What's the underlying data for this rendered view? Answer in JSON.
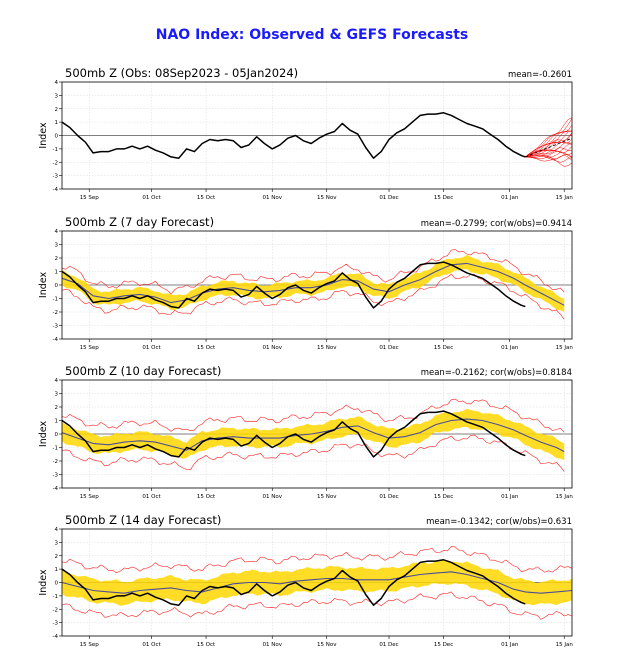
{
  "figure_title": "NAO Index: Observed & GEFS Forecasts",
  "colors": {
    "title": "#1a1aff",
    "observed": "#000000",
    "ensemble_mean": "#4d4d99",
    "spread_band": "#ffd700",
    "spread_lines": "#ff2020",
    "forecast_members": "#ff0000"
  },
  "chart_data": [
    {
      "type": "line",
      "title": "500mb Z (Obs: 08Sep2023 - 05Jan2024)",
      "stat_text": "mean=-0.2601",
      "ylabel": "Index",
      "ylim": [
        -4,
        4
      ],
      "yticks": [
        -4,
        -3,
        -2,
        -1,
        0,
        1,
        2,
        3,
        4
      ],
      "xlim_days": [
        0,
        131
      ],
      "xtick_days": [
        7,
        23,
        37,
        54,
        68,
        84,
        98,
        115,
        129
      ],
      "xtick_labels": [
        "15 Sep",
        "01 Oct",
        "15 Oct",
        "01 Nov",
        "15 Nov",
        "01 Dec",
        "15 Dec",
        "01 Jan",
        "15 Jan"
      ],
      "grid": true,
      "series": [
        {
          "role": "observed",
          "x": [
            0,
            2,
            4,
            6,
            8,
            10,
            12,
            14,
            16,
            18,
            20,
            22,
            24,
            26,
            28,
            30,
            32,
            34,
            36,
            38,
            40,
            42,
            44,
            46,
            48,
            50,
            52,
            54,
            56,
            58,
            60,
            62,
            64,
            66,
            68,
            70,
            72,
            74,
            76,
            78,
            80,
            82,
            84,
            86,
            88,
            90,
            92,
            94,
            96,
            98,
            100,
            102,
            104,
            106,
            108,
            110,
            112,
            114,
            116,
            118,
            119
          ],
          "y": [
            1.0,
            0.6,
            0.0,
            -0.5,
            -1.3,
            -1.2,
            -1.2,
            -1.0,
            -1.0,
            -0.8,
            -1.0,
            -0.8,
            -1.1,
            -1.3,
            -1.6,
            -1.7,
            -1.0,
            -1.2,
            -0.6,
            -0.3,
            -0.4,
            -0.3,
            -0.4,
            -0.9,
            -0.7,
            -0.1,
            -0.6,
            -1.0,
            -0.7,
            -0.2,
            0.0,
            -0.4,
            -0.6,
            -0.2,
            0.1,
            0.3,
            0.9,
            0.4,
            0.1,
            -0.9,
            -1.7,
            -1.2,
            -0.3,
            0.2,
            0.5,
            1.0,
            1.5,
            1.6,
            1.6,
            1.7,
            1.5,
            1.2,
            0.9,
            0.7,
            0.5,
            0.1,
            -0.3,
            -0.8,
            -1.2,
            -1.5,
            -1.6
          ]
        }
      ],
      "forecast": {
        "start_day": 119,
        "start_value": -1.6,
        "end_day": 131,
        "member_end_values": [
          -2.2,
          -1.9,
          -1.6,
          -1.4,
          -1.2,
          -1.0,
          -0.8,
          -0.6,
          -0.4,
          -0.2,
          0.0,
          0.2,
          0.4,
          0.6,
          0.8,
          1.0,
          1.2,
          -1.7,
          -0.9,
          0.1
        ],
        "mean_end_value": -0.2
      }
    },
    {
      "type": "line",
      "title": "500mb Z (7 day Forecast)",
      "stat_text": "mean=-0.2799; cor(w/obs)=0.9414",
      "ylabel": "Index",
      "ylim": [
        -4,
        4
      ],
      "yticks": [
        -4,
        -3,
        -2,
        -1,
        0,
        1,
        2,
        3,
        4
      ],
      "xlim_days": [
        0,
        131
      ],
      "xtick_days": [
        7,
        23,
        37,
        54,
        68,
        84,
        98,
        115,
        129
      ],
      "xtick_labels": [
        "15 Sep",
        "01 Oct",
        "15 Oct",
        "01 Nov",
        "15 Nov",
        "01 Dec",
        "15 Dec",
        "01 Jan",
        "15 Jan"
      ],
      "grid": true,
      "band_half_width": 0.5,
      "outer_half_width": 0.9,
      "series": [
        {
          "role": "observed",
          "x": [
            0,
            2,
            4,
            6,
            8,
            10,
            12,
            14,
            16,
            18,
            20,
            22,
            24,
            26,
            28,
            30,
            32,
            34,
            36,
            38,
            40,
            42,
            44,
            46,
            48,
            50,
            52,
            54,
            56,
            58,
            60,
            62,
            64,
            66,
            68,
            70,
            72,
            74,
            76,
            78,
            80,
            82,
            84,
            86,
            88,
            90,
            92,
            94,
            96,
            98,
            100,
            102,
            104,
            106,
            108,
            110,
            112,
            114,
            116,
            118,
            119
          ],
          "y": [
            1.0,
            0.6,
            0.0,
            -0.5,
            -1.3,
            -1.2,
            -1.2,
            -1.0,
            -1.0,
            -0.8,
            -1.0,
            -0.8,
            -1.1,
            -1.3,
            -1.6,
            -1.7,
            -1.0,
            -1.2,
            -0.6,
            -0.3,
            -0.4,
            -0.3,
            -0.4,
            -0.9,
            -0.7,
            -0.1,
            -0.6,
            -1.0,
            -0.7,
            -0.2,
            0.0,
            -0.4,
            -0.6,
            -0.2,
            0.1,
            0.3,
            0.9,
            0.4,
            0.1,
            -0.9,
            -1.7,
            -1.2,
            -0.3,
            0.2,
            0.5,
            1.0,
            1.5,
            1.6,
            1.6,
            1.7,
            1.5,
            1.2,
            0.9,
            0.7,
            0.5,
            0.1,
            -0.3,
            -0.8,
            -1.2,
            -1.5,
            -1.6
          ]
        },
        {
          "role": "ensemble_mean",
          "x": [
            0,
            4,
            8,
            12,
            16,
            20,
            24,
            28,
            32,
            36,
            40,
            44,
            48,
            52,
            56,
            60,
            64,
            68,
            72,
            76,
            80,
            84,
            88,
            92,
            96,
            100,
            104,
            108,
            112,
            116,
            119,
            123,
            127,
            129
          ],
          "y": [
            0.5,
            0.1,
            -0.8,
            -1.0,
            -0.8,
            -0.7,
            -0.9,
            -1.3,
            -1.1,
            -0.6,
            -0.3,
            -0.2,
            -0.4,
            -0.5,
            -0.4,
            -0.2,
            -0.2,
            0.0,
            0.4,
            0.3,
            -0.3,
            -0.5,
            0.0,
            0.4,
            1.0,
            1.5,
            1.6,
            1.3,
            1.0,
            0.5,
            0.0,
            -0.6,
            -1.2,
            -1.5
          ]
        }
      ]
    },
    {
      "type": "line",
      "title": "500mb Z (10 day Forecast)",
      "stat_text": "mean=-0.2162; cor(w/obs)=0.8184",
      "ylabel": "Index",
      "ylim": [
        -4,
        4
      ],
      "yticks": [
        -4,
        -3,
        -2,
        -1,
        0,
        1,
        2,
        3,
        4
      ],
      "xlim_days": [
        0,
        131
      ],
      "xtick_days": [
        7,
        23,
        37,
        54,
        68,
        84,
        98,
        115,
        129
      ],
      "xtick_labels": [
        "15 Sep",
        "01 Oct",
        "15 Oct",
        "01 Nov",
        "15 Nov",
        "01 Dec",
        "15 Dec",
        "01 Jan",
        "15 Jan"
      ],
      "grid": true,
      "band_half_width": 0.65,
      "outer_half_width": 1.35,
      "series": [
        {
          "role": "observed",
          "x": [
            0,
            2,
            4,
            6,
            8,
            10,
            12,
            14,
            16,
            18,
            20,
            22,
            24,
            26,
            28,
            30,
            32,
            34,
            36,
            38,
            40,
            42,
            44,
            46,
            48,
            50,
            52,
            54,
            56,
            58,
            60,
            62,
            64,
            66,
            68,
            70,
            72,
            74,
            76,
            78,
            80,
            82,
            84,
            86,
            88,
            90,
            92,
            94,
            96,
            98,
            100,
            102,
            104,
            106,
            108,
            110,
            112,
            114,
            116,
            118,
            119
          ],
          "y": [
            1.0,
            0.6,
            0.0,
            -0.5,
            -1.3,
            -1.2,
            -1.2,
            -1.0,
            -1.0,
            -0.8,
            -1.0,
            -0.8,
            -1.1,
            -1.3,
            -1.6,
            -1.7,
            -1.0,
            -1.2,
            -0.6,
            -0.3,
            -0.4,
            -0.3,
            -0.4,
            -0.9,
            -0.7,
            -0.1,
            -0.6,
            -1.0,
            -0.7,
            -0.2,
            0.0,
            -0.4,
            -0.6,
            -0.2,
            0.1,
            0.3,
            0.9,
            0.4,
            0.1,
            -0.9,
            -1.7,
            -1.2,
            -0.3,
            0.2,
            0.5,
            1.0,
            1.5,
            1.6,
            1.6,
            1.7,
            1.5,
            1.2,
            0.9,
            0.7,
            0.5,
            0.1,
            -0.3,
            -0.8,
            -1.2,
            -1.5,
            -1.6
          ]
        },
        {
          "role": "ensemble_mean",
          "x": [
            0,
            4,
            8,
            12,
            16,
            20,
            24,
            28,
            32,
            36,
            40,
            44,
            48,
            52,
            56,
            60,
            64,
            68,
            72,
            76,
            80,
            84,
            88,
            92,
            96,
            100,
            104,
            108,
            112,
            116,
            119,
            123,
            127,
            129
          ],
          "y": [
            0.1,
            -0.3,
            -0.7,
            -0.8,
            -0.6,
            -0.5,
            -0.6,
            -0.9,
            -1.2,
            -0.5,
            -0.3,
            -0.2,
            -0.3,
            -0.3,
            -0.3,
            -0.1,
            0.0,
            0.2,
            0.5,
            0.6,
            0.1,
            -0.3,
            -0.2,
            0.1,
            0.7,
            1.0,
            1.1,
            1.0,
            0.7,
            0.3,
            -0.1,
            -0.6,
            -1.0,
            -1.3
          ]
        }
      ]
    },
    {
      "type": "line",
      "title": "500mb Z (14 day Forecast)",
      "stat_text": "mean=-0.1342; cor(w/obs)=0.631",
      "ylabel": "Index",
      "ylim": [
        -4,
        4
      ],
      "yticks": [
        -4,
        -3,
        -2,
        -1,
        0,
        1,
        2,
        3,
        4
      ],
      "xlim_days": [
        0,
        131
      ],
      "xtick_days": [
        7,
        23,
        37,
        54,
        68,
        84,
        98,
        115,
        129
      ],
      "xtick_labels": [
        "15 Sep",
        "01 Oct",
        "15 Oct",
        "01 Nov",
        "15 Nov",
        "01 Dec",
        "15 Dec",
        "01 Jan",
        "15 Jan"
      ],
      "grid": true,
      "band_half_width": 0.85,
      "outer_half_width": 1.7,
      "series": [
        {
          "role": "observed",
          "x": [
            0,
            2,
            4,
            6,
            8,
            10,
            12,
            14,
            16,
            18,
            20,
            22,
            24,
            26,
            28,
            30,
            32,
            34,
            36,
            38,
            40,
            42,
            44,
            46,
            48,
            50,
            52,
            54,
            56,
            58,
            60,
            62,
            64,
            66,
            68,
            70,
            72,
            74,
            76,
            78,
            80,
            82,
            84,
            86,
            88,
            90,
            92,
            94,
            96,
            98,
            100,
            102,
            104,
            106,
            108,
            110,
            112,
            114,
            116,
            118,
            119
          ],
          "y": [
            1.0,
            0.6,
            0.0,
            -0.5,
            -1.3,
            -1.2,
            -1.2,
            -1.0,
            -1.0,
            -0.8,
            -1.0,
            -0.8,
            -1.1,
            -1.3,
            -1.6,
            -1.7,
            -1.0,
            -1.2,
            -0.6,
            -0.3,
            -0.4,
            -0.3,
            -0.4,
            -0.9,
            -0.7,
            -0.1,
            -0.6,
            -1.0,
            -0.7,
            -0.2,
            0.0,
            -0.4,
            -0.6,
            -0.2,
            0.1,
            0.3,
            0.9,
            0.4,
            0.1,
            -0.9,
            -1.7,
            -1.2,
            -0.3,
            0.2,
            0.5,
            1.0,
            1.5,
            1.6,
            1.6,
            1.7,
            1.5,
            1.2,
            0.9,
            0.7,
            0.5,
            0.1,
            -0.3,
            -0.8,
            -1.2,
            -1.5,
            -1.6
          ]
        },
        {
          "role": "ensemble_mean",
          "x": [
            0,
            4,
            8,
            12,
            16,
            20,
            24,
            28,
            32,
            36,
            40,
            44,
            48,
            52,
            56,
            60,
            64,
            68,
            72,
            76,
            80,
            84,
            88,
            92,
            96,
            100,
            104,
            108,
            112,
            116,
            119,
            123,
            127,
            131
          ],
          "y": [
            0.0,
            -0.3,
            -0.6,
            -0.7,
            -0.8,
            -0.6,
            -0.5,
            -0.4,
            -0.6,
            -0.7,
            -0.4,
            -0.1,
            0.0,
            0.0,
            -0.1,
            0.1,
            0.2,
            0.3,
            0.3,
            0.2,
            0.2,
            0.2,
            0.4,
            0.6,
            0.7,
            0.8,
            0.6,
            0.3,
            0.0,
            -0.5,
            -0.7,
            -0.8,
            -0.7,
            -0.6
          ]
        }
      ]
    }
  ]
}
